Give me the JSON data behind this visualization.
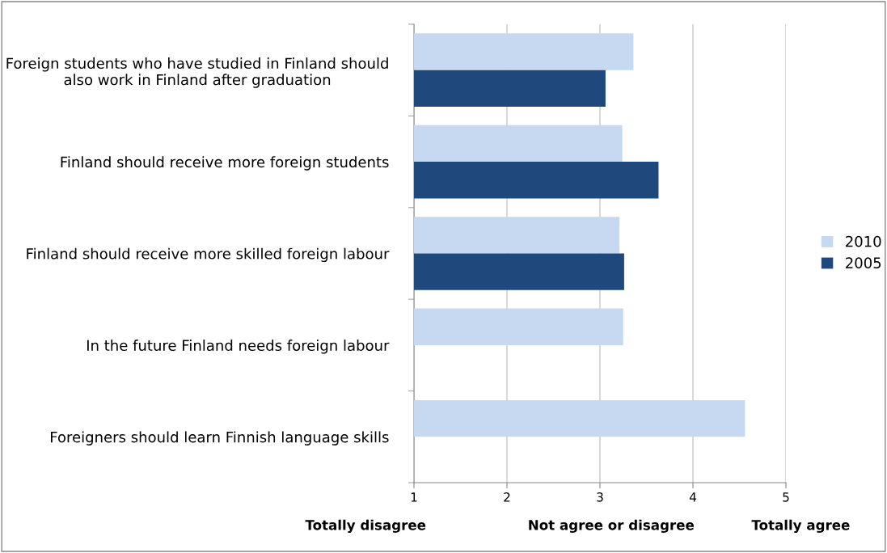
{
  "chart_data": {
    "type": "bar",
    "orientation": "horizontal",
    "categories": [
      "Foreign students who have studied in Finland should also work in Finland after graduation",
      "Finland should receive more foreign students",
      "Finland should receive more skilled foreign labour",
      "In the future Finland needs foreign labour",
      "Foreigners should learn Finnish language skills"
    ],
    "series": [
      {
        "name": "2010",
        "color": "#c6d9f1",
        "values": [
          3.36,
          3.24,
          3.21,
          3.25,
          4.56
        ]
      },
      {
        "name": "2005",
        "color": "#1f497d",
        "values": [
          3.06,
          3.63,
          3.26,
          null,
          null
        ]
      }
    ],
    "xlim": [
      1,
      5
    ],
    "xticks": [
      1,
      2,
      3,
      4,
      5
    ],
    "grid": "x",
    "legend": "right",
    "annotations": [
      "Totally disagree",
      "Not agree or disagree",
      "Totally agree"
    ]
  }
}
